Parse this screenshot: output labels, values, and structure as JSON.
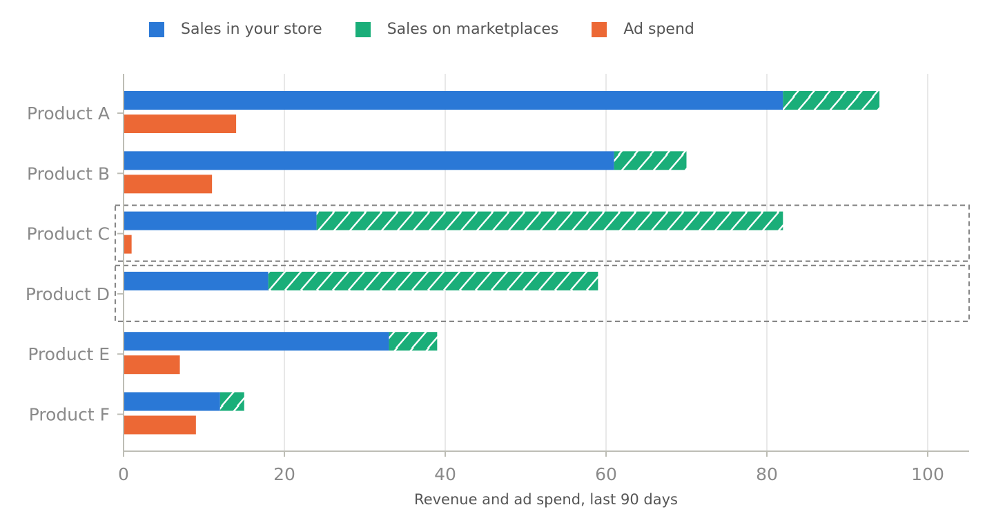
{
  "chart_data": {
    "type": "bar",
    "orientation": "horizontal",
    "categories": [
      "Product A",
      "Product B",
      "Product C",
      "Product D",
      "Product E",
      "Product F"
    ],
    "series": [
      {
        "name": "Sales in your store",
        "values": [
          82,
          61,
          24,
          18,
          33,
          12
        ],
        "color": "#2a78d6",
        "stack": "sales"
      },
      {
        "name": "Sales on marketplaces",
        "values": [
          12,
          9,
          58,
          41,
          6,
          3
        ],
        "color": "#1aae79",
        "stack": "sales",
        "pattern": "hatch"
      },
      {
        "name": "Ad spend",
        "values": [
          14,
          11,
          1,
          0,
          7,
          9
        ],
        "color": "#ec6835",
        "stack": "ad"
      }
    ],
    "xlabel": "Revenue and ad spend, last 90 days",
    "ylabel": "",
    "xlim": [
      0,
      105
    ],
    "xticks": [
      0,
      20,
      40,
      60,
      80,
      100
    ],
    "grid": "vertical",
    "legend": "top",
    "highlighted_categories": [
      "Product C",
      "Product D"
    ],
    "highlight_style": "dashed box",
    "colors": {
      "grid": "#dcdcdc",
      "axis": "#bdbdb5",
      "tick_text": "#8a8a8a",
      "highlight": "#888888"
    }
  }
}
